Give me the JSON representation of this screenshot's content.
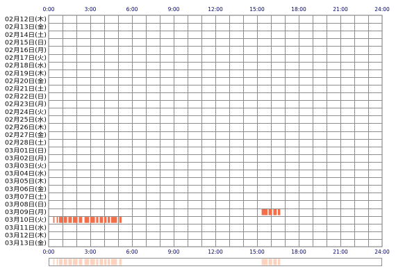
{
  "colors": {
    "grid": "#8c8c8c",
    "frame": "#707070",
    "activity": "#f26f4a",
    "summary": "#fcd3bf",
    "summary_frame": "#909090",
    "tick_text": "#000066"
  },
  "chart_data": {
    "type": "activity-timeline",
    "x_ticks": [
      "0:00",
      "3:00",
      "6:00",
      "9:00",
      "12:00",
      "15:00",
      "18:00",
      "21:00",
      "24:00"
    ],
    "x_range_hours": [
      0,
      24
    ],
    "grid": true,
    "rows": [
      "02月12日(木)",
      "02月13日(金)",
      "02月14日(土)",
      "02月15日(日)",
      "02月16日(月)",
      "02月17日(火)",
      "02月18日(水)",
      "02月19日(木)",
      "02月20日(金)",
      "02月21日(土)",
      "02月22日(日)",
      "02月23日(月)",
      "02月24日(火)",
      "02月25日(水)",
      "02月26日(木)",
      "02月27日(金)",
      "02月28日(土)",
      "03月01日(日)",
      "03月02日(月)",
      "03月03日(火)",
      "03月04日(水)",
      "03月05日(木)",
      "03月06日(金)",
      "03月07日(土)",
      "03月08日(日)",
      "03月09日(月)",
      "03月10日(火)",
      "03月11日(水)",
      "03月12日(木)",
      "03月13日(金)"
    ],
    "activity": [
      {
        "row": 25,
        "segments_hours": [
          [
            15.33,
            15.75
          ],
          [
            15.83,
            16.08
          ],
          [
            16.17,
            16.42
          ],
          [
            16.5,
            16.67
          ]
        ]
      },
      {
        "row": 26,
        "segments_hours": [
          [
            0.33,
            0.42
          ],
          [
            0.58,
            0.67
          ],
          [
            0.75,
            1.0
          ],
          [
            1.08,
            1.33
          ],
          [
            1.42,
            1.67
          ],
          [
            1.75,
            2.08
          ],
          [
            2.17,
            2.42
          ],
          [
            2.58,
            2.92
          ],
          [
            3.0,
            3.33
          ],
          [
            3.42,
            3.58
          ],
          [
            3.67,
            3.92
          ],
          [
            4.0,
            4.17
          ],
          [
            4.25,
            4.42
          ],
          [
            4.5,
            4.92
          ],
          [
            5.08,
            5.25
          ]
        ]
      }
    ]
  }
}
